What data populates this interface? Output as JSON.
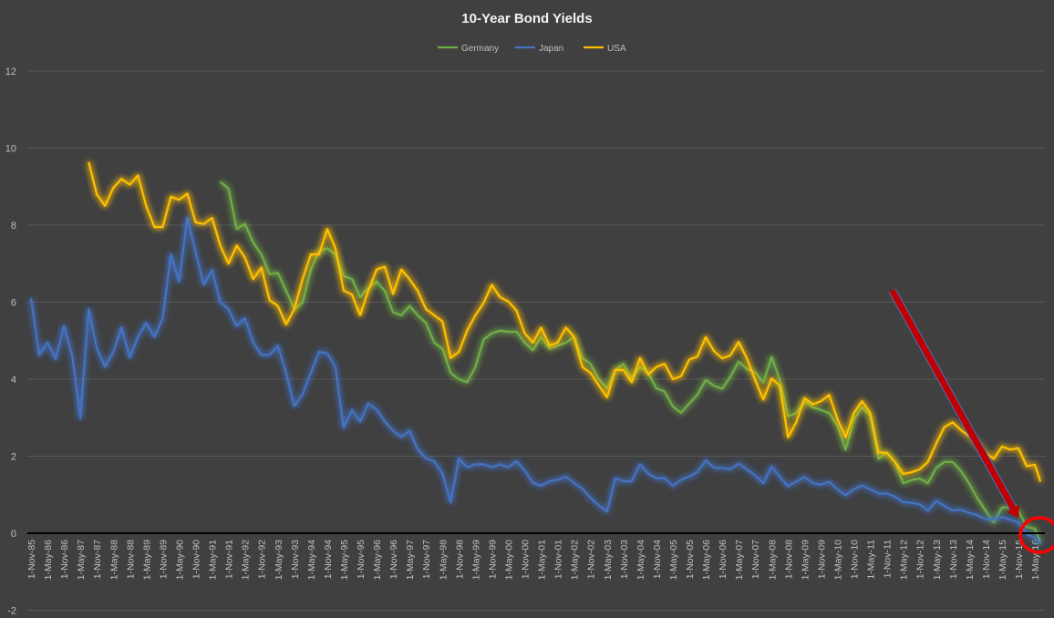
{
  "chart_data": {
    "type": "line",
    "title": "10-Year Bond Yields",
    "xlabel": "",
    "ylabel": "",
    "ylim": [
      -2,
      12
    ],
    "y_ticks": [
      "-2",
      "0",
      "2",
      "4",
      "6",
      "8",
      "10",
      "12"
    ],
    "grid": true,
    "legend_position": "top",
    "x_tick_labels": [
      "1-Nov-85",
      "1-May-86",
      "1-Nov-86",
      "1-May-87",
      "1-Nov-87",
      "1-May-88",
      "1-Nov-88",
      "1-May-89",
      "1-Nov-89",
      "1-May-90",
      "1-Nov-90",
      "1-May-91",
      "1-Nov-91",
      "1-May-92",
      "1-Nov-92",
      "1-May-93",
      "1-Nov-93",
      "1-May-94",
      "1-Nov-94",
      "1-May-95",
      "1-Nov-95",
      "1-May-96",
      "1-Nov-96",
      "1-May-97",
      "1-Nov-97",
      "1-May-98",
      "1-Nov-98",
      "1-May-99",
      "1-Nov-99",
      "1-May-00",
      "1-Nov-00",
      "1-May-01",
      "1-Nov-01",
      "1-May-02",
      "1-Nov-02",
      "1-May-03",
      "1-Nov-03",
      "1-May-04",
      "1-Nov-04",
      "1-May-05",
      "1-Nov-05",
      "1-May-06",
      "1-Nov-06",
      "1-May-07",
      "1-Nov-07",
      "1-May-08",
      "1-Nov-08",
      "1-May-09",
      "1-Nov-09",
      "1-May-10",
      "1-Nov-10",
      "1-May-11",
      "1-Nov-11",
      "1-May-12",
      "1-Nov-12",
      "1-May-13",
      "1-Nov-13",
      "1-May-14",
      "1-Nov-14",
      "1-May-15",
      "1-Nov-15",
      "1-May-16"
    ],
    "x": [
      "1985-11",
      "1986-02",
      "1986-05",
      "1986-08",
      "1986-11",
      "1987-02",
      "1987-05",
      "1987-08",
      "1987-11",
      "1988-02",
      "1988-05",
      "1988-08",
      "1988-11",
      "1989-02",
      "1989-05",
      "1989-08",
      "1989-11",
      "1990-02",
      "1990-05",
      "1990-08",
      "1990-11",
      "1991-02",
      "1991-05",
      "1991-08",
      "1991-11",
      "1992-02",
      "1992-05",
      "1992-08",
      "1992-11",
      "1993-02",
      "1993-05",
      "1993-08",
      "1993-11",
      "1994-02",
      "1994-05",
      "1994-08",
      "1994-11",
      "1995-02",
      "1995-05",
      "1995-08",
      "1995-11",
      "1996-02",
      "1996-05",
      "1996-08",
      "1996-11",
      "1997-02",
      "1997-05",
      "1997-08",
      "1997-11",
      "1998-02",
      "1998-05",
      "1998-08",
      "1998-11",
      "1999-02",
      "1999-05",
      "1999-08",
      "1999-11",
      "2000-02",
      "2000-05",
      "2000-08",
      "2000-11",
      "2001-02",
      "2001-05",
      "2001-08",
      "2001-11",
      "2002-02",
      "2002-05",
      "2002-08",
      "2002-11",
      "2003-02",
      "2003-05",
      "2003-08",
      "2003-11",
      "2004-02",
      "2004-05",
      "2004-08",
      "2004-11",
      "2005-02",
      "2005-05",
      "2005-08",
      "2005-11",
      "2006-02",
      "2006-05",
      "2006-08",
      "2006-11",
      "2007-02",
      "2007-05",
      "2007-08",
      "2007-11",
      "2008-02",
      "2008-05",
      "2008-08",
      "2008-11",
      "2009-02",
      "2009-05",
      "2009-08",
      "2009-11",
      "2010-02",
      "2010-05",
      "2010-08",
      "2010-11",
      "2011-02",
      "2011-05",
      "2011-08",
      "2011-11",
      "2012-02",
      "2012-05",
      "2012-08",
      "2012-11",
      "2013-02",
      "2013-05",
      "2013-08",
      "2013-11",
      "2014-02",
      "2014-05",
      "2014-08",
      "2014-11",
      "2015-02",
      "2015-05",
      "2015-08",
      "2015-11",
      "2016-02",
      "2016-05",
      "2016-07"
    ],
    "series": [
      {
        "name": "Germany",
        "color": "#70AD47",
        "values": [
          null,
          null,
          null,
          null,
          null,
          null,
          null,
          null,
          null,
          null,
          null,
          null,
          null,
          null,
          null,
          null,
          null,
          null,
          null,
          null,
          null,
          null,
          null,
          9.13,
          8.95,
          7.9,
          8.03,
          7.55,
          7.24,
          6.73,
          6.76,
          6.3,
          5.82,
          5.98,
          6.84,
          7.32,
          7.4,
          7.24,
          6.68,
          6.6,
          6.13,
          6.37,
          6.53,
          6.29,
          5.74,
          5.66,
          5.9,
          5.66,
          5.46,
          4.95,
          4.79,
          4.16,
          4.0,
          3.92,
          4.32,
          5.03,
          5.19,
          5.26,
          5.23,
          5.23,
          4.95,
          4.75,
          5.1,
          4.79,
          4.87,
          4.95,
          5.1,
          4.55,
          4.4,
          4.0,
          3.76,
          4.24,
          4.4,
          4.0,
          4.32,
          4.16,
          3.76,
          3.68,
          3.29,
          3.13,
          3.37,
          3.6,
          3.98,
          3.83,
          3.75,
          4.06,
          4.46,
          4.26,
          4.18,
          3.91,
          4.58,
          3.98,
          3.04,
          3.12,
          3.43,
          3.27,
          3.2,
          3.12,
          2.8,
          2.17,
          2.96,
          3.27,
          3.04,
          1.93,
          2.09,
          1.85,
          1.3,
          1.38,
          1.42,
          1.3,
          1.7,
          1.85,
          1.85,
          1.62,
          1.3,
          0.91,
          0.59,
          0.28,
          0.67,
          0.67,
          0.59,
          0.16,
          0.12,
          -0.24
        ]
      },
      {
        "name": "Japan",
        "color": "#4472C4",
        "values": [
          6.1,
          4.63,
          4.95,
          4.52,
          5.38,
          4.63,
          2.98,
          5.82,
          4.8,
          4.32,
          4.71,
          5.35,
          4.56,
          5.1,
          5.46,
          5.1,
          5.58,
          7.24,
          6.53,
          8.2,
          7.3,
          6.45,
          6.84,
          6.0,
          5.82,
          5.38,
          5.58,
          4.95,
          4.63,
          4.63,
          4.87,
          4.16,
          3.3,
          3.6,
          4.16,
          4.71,
          4.67,
          4.32,
          2.74,
          3.2,
          2.9,
          3.37,
          3.21,
          2.9,
          2.66,
          2.5,
          2.66,
          2.18,
          1.94,
          1.87,
          1.55,
          0.8,
          1.94,
          1.71,
          1.79,
          1.79,
          1.71,
          1.79,
          1.71,
          1.87,
          1.63,
          1.31,
          1.23,
          1.35,
          1.39,
          1.47,
          1.31,
          1.15,
          0.92,
          0.72,
          0.56,
          1.43,
          1.35,
          1.35,
          1.79,
          1.55,
          1.43,
          1.43,
          1.23,
          1.39,
          1.47,
          1.59,
          1.89,
          1.7,
          1.7,
          1.66,
          1.81,
          1.66,
          1.5,
          1.3,
          1.74,
          1.46,
          1.22,
          1.34,
          1.46,
          1.3,
          1.26,
          1.34,
          1.14,
          0.99,
          1.14,
          1.24,
          1.14,
          1.03,
          1.03,
          0.95,
          0.81,
          0.79,
          0.75,
          0.59,
          0.84,
          0.71,
          0.59,
          0.61,
          0.53,
          0.47,
          0.36,
          0.36,
          0.42,
          0.36,
          0.28,
          -0.02,
          -0.12,
          -0.28
        ]
      },
      {
        "name": "USA",
        "color": "#FFC000",
        "values": [
          null,
          null,
          null,
          null,
          null,
          null,
          null,
          9.64,
          8.8,
          8.5,
          8.97,
          9.2,
          9.05,
          9.29,
          8.5,
          7.95,
          7.95,
          8.74,
          8.66,
          8.82,
          8.07,
          8.03,
          8.19,
          7.47,
          7.0,
          7.47,
          7.16,
          6.6,
          6.9,
          6.05,
          5.9,
          5.42,
          5.82,
          6.6,
          7.24,
          7.24,
          7.9,
          7.4,
          6.3,
          6.2,
          5.66,
          6.3,
          6.85,
          6.92,
          6.21,
          6.85,
          6.6,
          6.29,
          5.82,
          5.66,
          5.5,
          4.55,
          4.71,
          5.26,
          5.66,
          5.98,
          6.45,
          6.13,
          6.02,
          5.78,
          5.19,
          4.95,
          5.34,
          4.87,
          4.95,
          5.34,
          5.1,
          4.32,
          4.16,
          3.84,
          3.53,
          4.24,
          4.24,
          3.92,
          4.55,
          4.12,
          4.32,
          4.4,
          4.0,
          4.08,
          4.51,
          4.59,
          5.09,
          4.73,
          4.54,
          4.62,
          4.97,
          4.54,
          3.98,
          3.47,
          4.02,
          3.83,
          2.49,
          2.88,
          3.51,
          3.35,
          3.43,
          3.59,
          2.96,
          2.49,
          3.12,
          3.43,
          3.12,
          2.09,
          2.09,
          1.85,
          1.54,
          1.58,
          1.66,
          1.85,
          2.33,
          2.76,
          2.88,
          2.68,
          2.52,
          2.33,
          2.09,
          1.93,
          2.25,
          2.17,
          2.21,
          1.74,
          1.78,
          1.34
        ]
      }
    ],
    "annotations": [
      {
        "type": "arrow",
        "color": "#C00000",
        "from": [
          "2012-01",
          6.3
        ],
        "to": [
          "2015-11",
          0.4
        ]
      },
      {
        "type": "circle",
        "color": "#FF0000",
        "center": [
          "2016-05",
          0
        ]
      }
    ]
  }
}
